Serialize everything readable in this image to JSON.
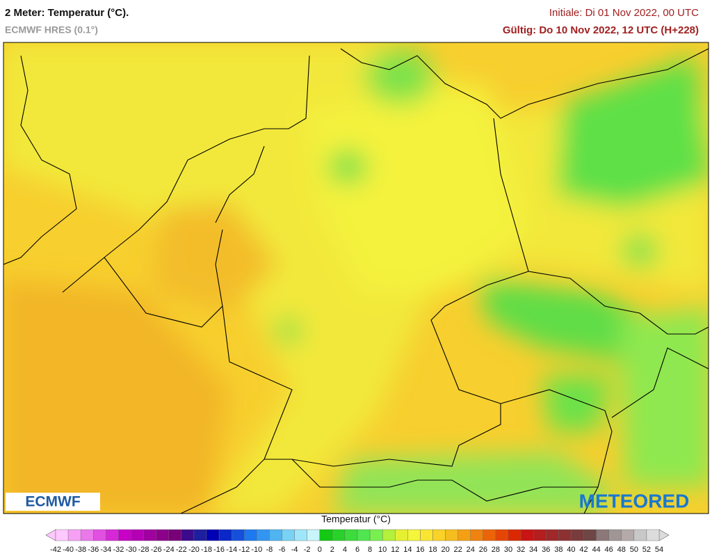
{
  "header": {
    "title": "2 Meter: Temperatur (°C).",
    "model": "ECMWF HRES (0.1°)",
    "init": "Initiale: Di 01 Nov 2022, 00 UTC",
    "valid": "Gültig: Do 10 Nov 2022, 12 UTC (H+228)"
  },
  "logos": {
    "left": "ECMWF",
    "right": "METEORED"
  },
  "legend": {
    "title": "Temperatur (°C)",
    "ticks": [
      -42,
      -40,
      -38,
      -36,
      -34,
      -32,
      -30,
      -28,
      -26,
      -24,
      -22,
      -20,
      -18,
      -16,
      -14,
      -12,
      -10,
      -8,
      -6,
      -4,
      -2,
      0,
      2,
      4,
      6,
      8,
      10,
      12,
      14,
      16,
      18,
      20,
      22,
      24,
      26,
      28,
      30,
      32,
      34,
      36,
      38,
      40,
      42,
      44,
      46,
      48,
      50,
      52,
      54
    ],
    "colors": [
      "#ffc8ff",
      "#f5a0f5",
      "#eb78eb",
      "#e150e1",
      "#d728d7",
      "#c800c8",
      "#b400b4",
      "#a000a0",
      "#8c008c",
      "#780078",
      "#3c0a8c",
      "#1e1ea0",
      "#0000b4",
      "#0a28c8",
      "#1450dc",
      "#1e78f0",
      "#3296f0",
      "#50b4f0",
      "#78d2f5",
      "#a0e6fa",
      "#c8f5fa",
      "#14c814",
      "#28d228",
      "#3cdc3c",
      "#50e650",
      "#78f050",
      "#b4f03c",
      "#e6f032",
      "#f5f53c",
      "#fae632",
      "#fad228",
      "#f5be1e",
      "#f5a014",
      "#f0820f",
      "#eb640a",
      "#e64605",
      "#dc2800",
      "#c81414",
      "#b41e1e",
      "#a02828",
      "#8c3232",
      "#783c3c",
      "#6e4646",
      "#8c7878",
      "#a09696",
      "#b4aaaa",
      "#c8c8c8",
      "#dcdcdc"
    ]
  }
}
